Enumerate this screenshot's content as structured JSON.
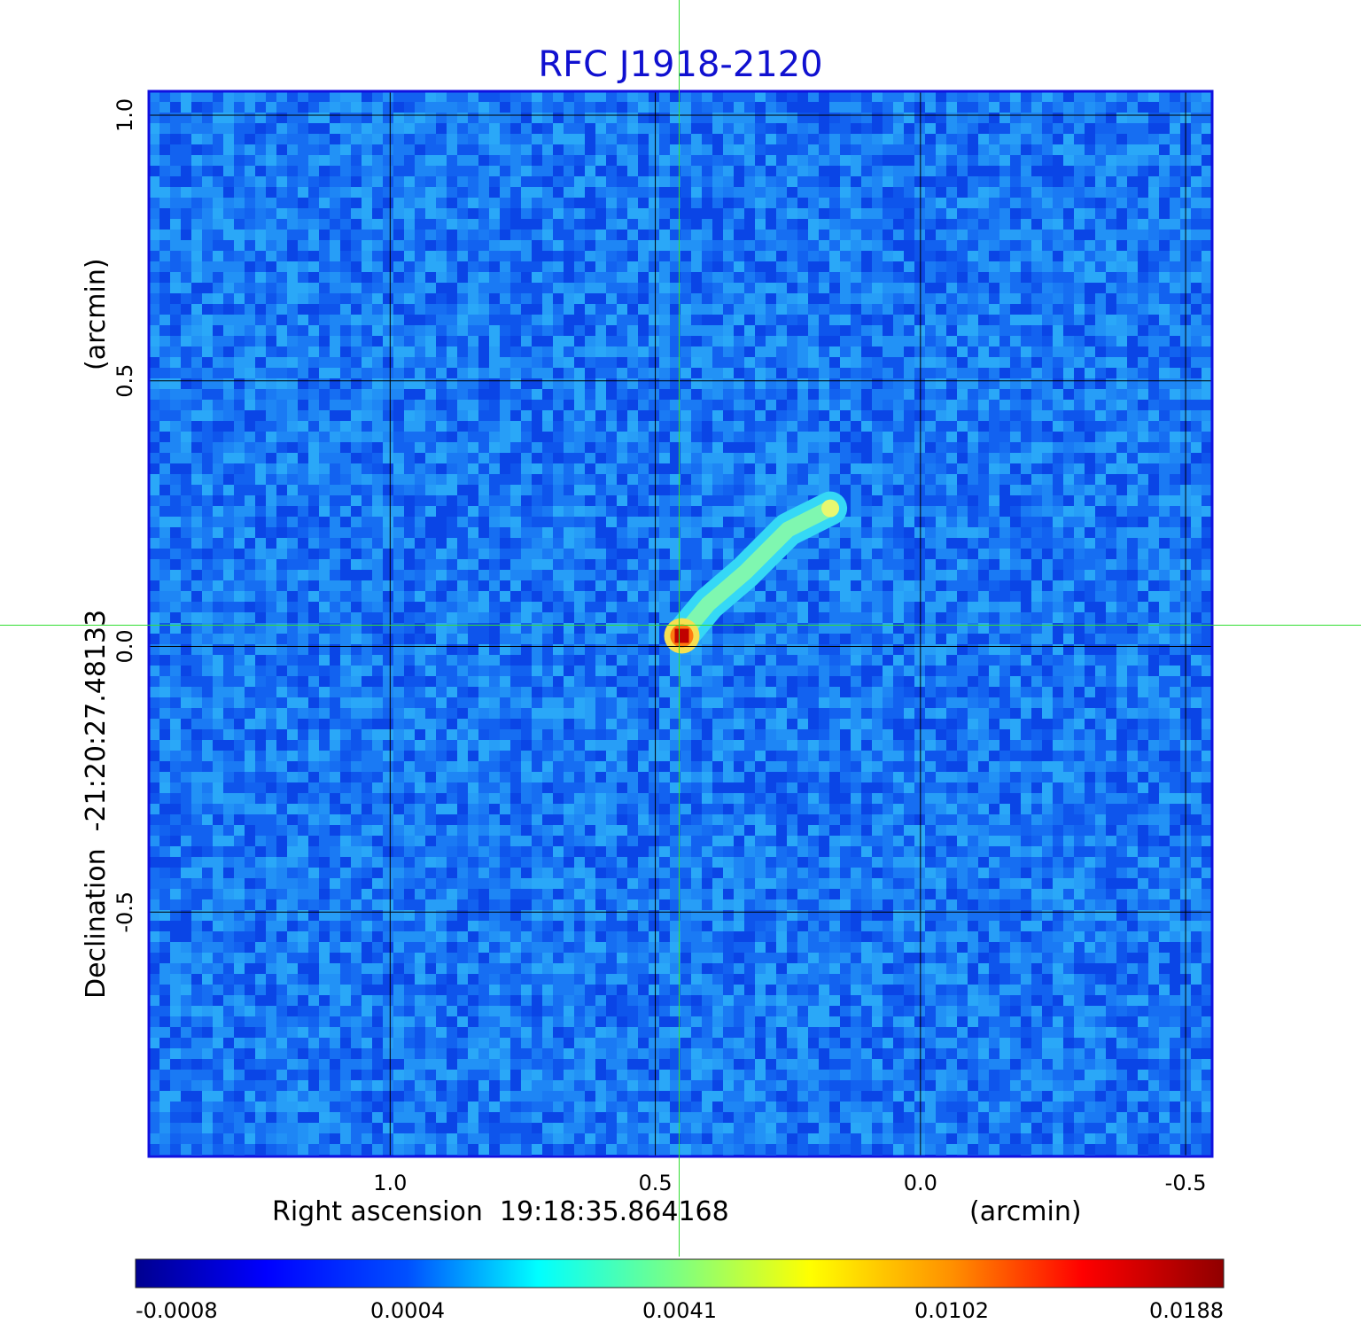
{
  "chart_data": {
    "type": "heatmap",
    "title": "RFC J1918-2120",
    "xlabel": "Right ascension  19:18:35.864168",
    "xunit": "(arcmin)",
    "ylabel": "Declination  -21:20:27.48133",
    "yunit": "(arcmin)",
    "x_ticks": [
      {
        "label": "1.0",
        "value": 1.0
      },
      {
        "label": "0.5",
        "value": 0.5
      },
      {
        "label": "0.0",
        "value": 0.0
      },
      {
        "label": "-0.5",
        "value": -0.5
      }
    ],
    "y_ticks": [
      {
        "label": "1.0",
        "value": 1.0
      },
      {
        "label": "0.5",
        "value": 0.5
      },
      {
        "label": "0.0",
        "value": 0.0
      },
      {
        "label": "-0.5",
        "value": -0.5
      }
    ],
    "xlim": [
      1.455,
      -0.55
    ],
    "ylim": [
      -0.96,
      1.045
    ],
    "grid": true,
    "colorbar": {
      "colormap": "jet",
      "tick_labels": [
        "-0.0008",
        "0.0004",
        "0.0041",
        "0.0102",
        "0.0188"
      ],
      "range": [
        -0.0008,
        0.0188
      ]
    },
    "crosshair": {
      "x": 0.455,
      "y": 0.04
    },
    "source_peak": {
      "x": 0.45,
      "y": 0.02,
      "value": 0.0188
    },
    "jet": {
      "direction": "north-west",
      "points": [
        {
          "x": 0.45,
          "y": 0.02
        },
        {
          "x": 0.4,
          "y": 0.08
        },
        {
          "x": 0.33,
          "y": 0.14
        },
        {
          "x": 0.25,
          "y": 0.22
        },
        {
          "x": 0.17,
          "y": 0.26
        }
      ]
    }
  }
}
